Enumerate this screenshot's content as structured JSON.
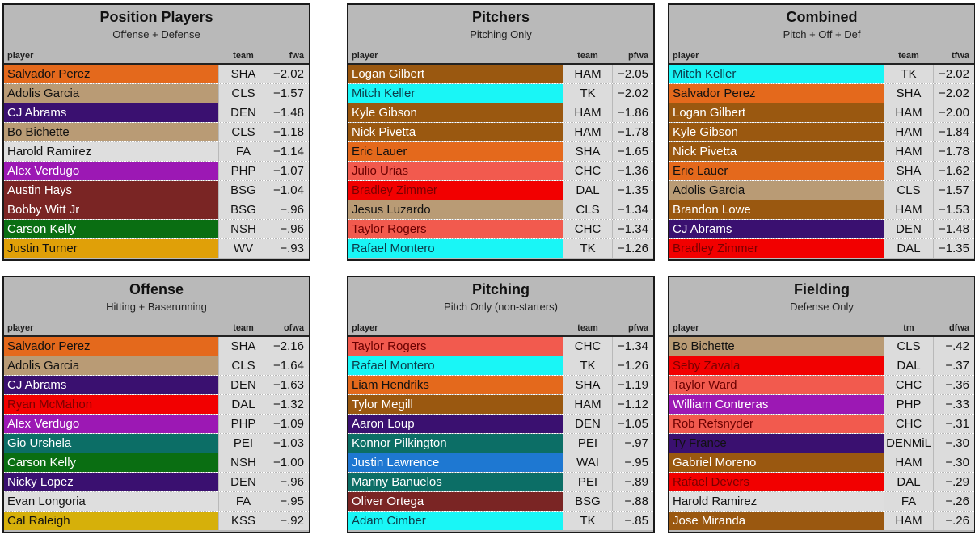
{
  "colors": {
    "SHA": "#e4691c",
    "CLS": "#b99b75",
    "DEN": "#3a1070",
    "FA": "#dedede",
    "PHP": "#9c18b4",
    "BSG": "#7a2524",
    "NSH": "#0a6e12",
    "WV": "#e0a008",
    "HAM": "#9a5810",
    "TK": "#19f6f6",
    "CHC": "#f25a4e",
    "DAL": "#f20000",
    "PEI": "#0c6e66",
    "KSS": "#d6b00a",
    "WAI": "#1e78d2",
    "DENMiL": "#3a1070"
  },
  "panels": [
    {
      "title": "Position Players",
      "subtitle": "Offense + Defense",
      "col_player": "player",
      "col_team": "team",
      "col_val": "fwa",
      "rows": [
        {
          "name": "Salvador Perez",
          "team": "SHA",
          "val": "−2.02"
        },
        {
          "name": "Adolis Garcia",
          "team": "CLS",
          "val": "−1.57"
        },
        {
          "name": "CJ Abrams",
          "team": "DEN",
          "val": "−1.48"
        },
        {
          "name": "Bo Bichette",
          "team": "CLS",
          "val": "−1.18"
        },
        {
          "name": "Harold Ramirez",
          "team": "FA",
          "val": "−1.14"
        },
        {
          "name": "Alex Verdugo",
          "team": "PHP",
          "val": "−1.07"
        },
        {
          "name": "Austin Hays",
          "team": "BSG",
          "val": "−1.04"
        },
        {
          "name": "Bobby Witt Jr",
          "team": "BSG",
          "val": "−.96"
        },
        {
          "name": "Carson Kelly",
          "team": "NSH",
          "val": "−.96"
        },
        {
          "name": "Justin Turner",
          "team": "WV",
          "val": "−.93"
        }
      ]
    },
    {
      "title": "Pitchers",
      "subtitle": "Pitching Only",
      "col_player": "player",
      "col_team": "team",
      "col_val": "pfwa",
      "rows": [
        {
          "name": "Logan Gilbert",
          "team": "HAM",
          "val": "−2.05"
        },
        {
          "name": "Mitch Keller",
          "team": "TK",
          "val": "−2.02"
        },
        {
          "name": "Kyle Gibson",
          "team": "HAM",
          "val": "−1.86"
        },
        {
          "name": "Nick Pivetta",
          "team": "HAM",
          "val": "−1.78"
        },
        {
          "name": "Eric Lauer",
          "team": "SHA",
          "val": "−1.65"
        },
        {
          "name": "Julio Urias",
          "team": "CHC",
          "val": "−1.36"
        },
        {
          "name": "Bradley Zimmer",
          "team": "DAL",
          "val": "−1.35"
        },
        {
          "name": "Jesus Luzardo",
          "team": "CLS",
          "val": "−1.34"
        },
        {
          "name": "Taylor Rogers",
          "team": "CHC",
          "val": "−1.34"
        },
        {
          "name": "Rafael Montero",
          "team": "TK",
          "val": "−1.26"
        }
      ]
    },
    {
      "title": "Combined",
      "subtitle": "Pitch + Off + Def",
      "col_player": "player",
      "col_team": "team",
      "col_val": "tfwa",
      "rows": [
        {
          "name": "Mitch Keller",
          "team": "TK",
          "val": "−2.02"
        },
        {
          "name": "Salvador Perez",
          "team": "SHA",
          "val": "−2.02"
        },
        {
          "name": "Logan Gilbert",
          "team": "HAM",
          "val": "−2.00"
        },
        {
          "name": "Kyle Gibson",
          "team": "HAM",
          "val": "−1.84"
        },
        {
          "name": "Nick Pivetta",
          "team": "HAM",
          "val": "−1.78"
        },
        {
          "name": "Eric Lauer",
          "team": "SHA",
          "val": "−1.62"
        },
        {
          "name": "Adolis Garcia",
          "team": "CLS",
          "val": "−1.57"
        },
        {
          "name": "Brandon Lowe",
          "team": "HAM",
          "val": "−1.53"
        },
        {
          "name": "CJ Abrams",
          "team": "DEN",
          "val": "−1.48"
        },
        {
          "name": "Bradley Zimmer",
          "team": "DAL",
          "val": "−1.35"
        }
      ]
    },
    {
      "title": "Offense",
      "subtitle": "Hitting + Baserunning",
      "col_player": "player",
      "col_team": "team",
      "col_val": "ofwa",
      "rows": [
        {
          "name": "Salvador Perez",
          "team": "SHA",
          "val": "−2.16"
        },
        {
          "name": "Adolis Garcia",
          "team": "CLS",
          "val": "−1.64"
        },
        {
          "name": "CJ Abrams",
          "team": "DEN",
          "val": "−1.63"
        },
        {
          "name": "Ryan McMahon",
          "team": "DAL",
          "val": "−1.32"
        },
        {
          "name": "Alex Verdugo",
          "team": "PHP",
          "val": "−1.09"
        },
        {
          "name": "Gio Urshela",
          "team": "PEI",
          "val": "−1.03"
        },
        {
          "name": "Carson Kelly",
          "team": "NSH",
          "val": "−1.00"
        },
        {
          "name": "Nicky Lopez",
          "team": "DEN",
          "val": "−.96"
        },
        {
          "name": "Evan Longoria",
          "team": "FA",
          "val": "−.95"
        },
        {
          "name": "Cal Raleigh",
          "team": "KSS",
          "val": "−.92"
        }
      ]
    },
    {
      "title": "Pitching",
      "subtitle": "Pitch Only (non-starters)",
      "col_player": "player",
      "col_team": "team",
      "col_val": "pfwa",
      "rows": [
        {
          "name": "Taylor Rogers",
          "team": "CHC",
          "val": "−1.34"
        },
        {
          "name": "Rafael Montero",
          "team": "TK",
          "val": "−1.26"
        },
        {
          "name": "Liam Hendriks",
          "team": "SHA",
          "val": "−1.19"
        },
        {
          "name": "Tylor Megill",
          "team": "HAM",
          "val": "−1.12"
        },
        {
          "name": "Aaron Loup",
          "team": "DEN",
          "val": "−1.05"
        },
        {
          "name": "Konnor Pilkington",
          "team": "PEI",
          "val": "−.97"
        },
        {
          "name": "Justin Lawrence",
          "team": "WAI",
          "val": "−.95"
        },
        {
          "name": "Manny Banuelos",
          "team": "PEI",
          "val": "−.89"
        },
        {
          "name": "Oliver Ortega",
          "team": "BSG",
          "val": "−.88"
        },
        {
          "name": "Adam Cimber",
          "team": "TK",
          "val": "−.85"
        }
      ]
    },
    {
      "title": "Fielding",
      "subtitle": "Defense Only",
      "col_player": "player",
      "col_team": "tm",
      "col_val": "dfwa",
      "rows": [
        {
          "name": "Bo Bichette",
          "team": "CLS",
          "val": "−.42"
        },
        {
          "name": "Seby Zavala",
          "team": "DAL",
          "val": "−.37"
        },
        {
          "name": "Taylor Ward",
          "team": "CHC",
          "val": "−.36"
        },
        {
          "name": "William Contreras",
          "team": "PHP",
          "val": "−.33"
        },
        {
          "name": "Rob Refsnyder",
          "team": "CHC",
          "val": "−.31"
        },
        {
          "name": "Ty France",
          "team": "DENMiL",
          "val": "−.30"
        },
        {
          "name": "Gabriel Moreno",
          "team": "HAM",
          "val": "−.30"
        },
        {
          "name": "Rafael Devers",
          "team": "DAL",
          "val": "−.29"
        },
        {
          "name": "Harold Ramirez",
          "team": "FA",
          "val": "−.26"
        },
        {
          "name": "Jose Miranda",
          "team": "HAM",
          "val": "−.26"
        }
      ]
    }
  ]
}
